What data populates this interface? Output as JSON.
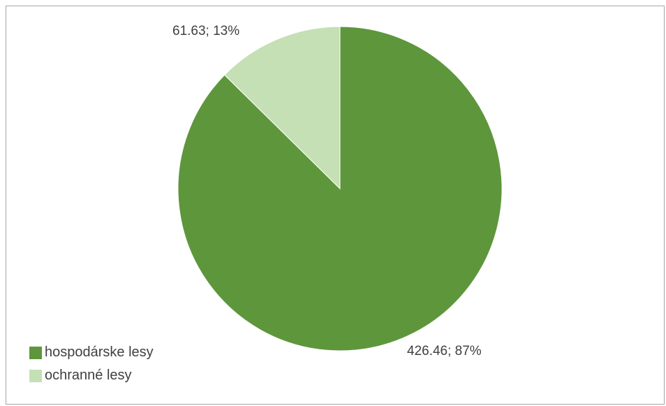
{
  "chart_data": {
    "type": "pie",
    "title": "",
    "categories": [
      "hospodárske lesy",
      "ochranné lesy"
    ],
    "values": [
      426.46,
      61.63
    ],
    "percentages": [
      "87%",
      "13%"
    ],
    "data_labels": [
      "426.46; 87%",
      "61.63; 13%"
    ],
    "colors": [
      "#5e963c",
      "#c5e0b4"
    ],
    "legend_position": "bottom-left",
    "start_angle_deg": 0,
    "direction": "clockwise"
  }
}
